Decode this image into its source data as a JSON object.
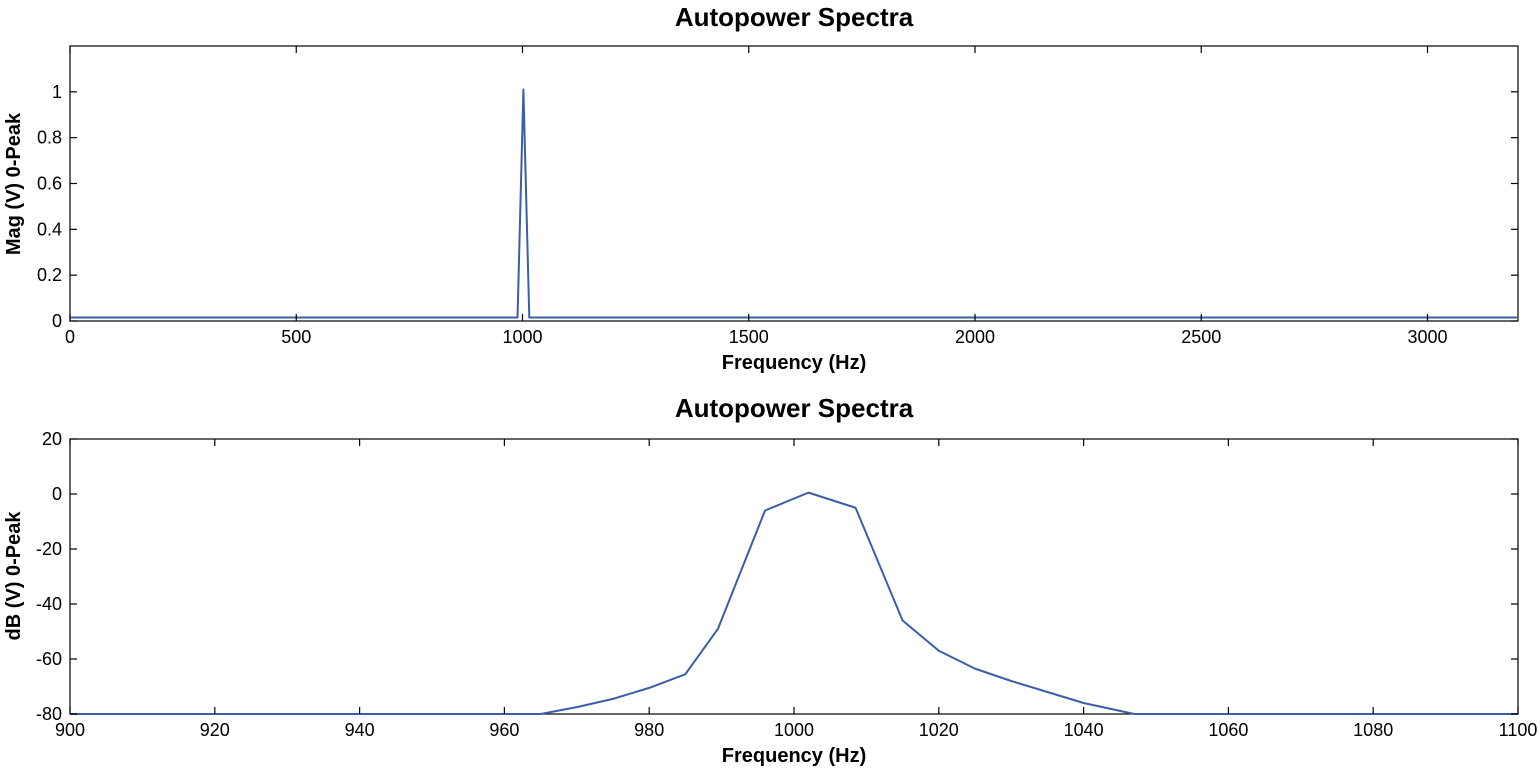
{
  "chart_data": [
    {
      "type": "line",
      "title": "Autopower Spectra",
      "xlabel": "Frequency (Hz)",
      "ylabel": "Mag (V) 0-Peak",
      "xlim": [
        0,
        3200
      ],
      "ylim": [
        0,
        1.2
      ],
      "xticks": [
        0,
        500,
        1000,
        1500,
        2000,
        2500,
        3000
      ],
      "yticks": [
        0,
        0.2,
        0.4,
        0.6,
        0.8,
        1
      ],
      "xtick_labels": [
        "0",
        "500",
        "1000",
        "1500",
        "2000",
        "2500",
        "3000"
      ],
      "ytick_labels": [
        "0",
        "0.2",
        "0.4",
        "0.6",
        "0.8",
        "1"
      ],
      "grid": false,
      "color": "#3b5ea8",
      "series": [
        {
          "x": [
            0,
            985,
            989,
            1002,
            1015,
            1019,
            3200
          ],
          "y": [
            0.015,
            0.015,
            0.015,
            1.01,
            0.015,
            0.015,
            0.015
          ]
        }
      ]
    },
    {
      "type": "line",
      "title": "Autopower Spectra",
      "xlabel": "Frequency (Hz)",
      "ylabel": "dB (V) 0-Peak",
      "xlim": [
        900,
        1100
      ],
      "ylim": [
        -80,
        20
      ],
      "xticks": [
        900,
        920,
        940,
        960,
        980,
        1000,
        1020,
        1040,
        1060,
        1080,
        1100
      ],
      "yticks": [
        -80,
        -60,
        -40,
        -20,
        0,
        20
      ],
      "xtick_labels": [
        "900",
        "920",
        "940",
        "960",
        "980",
        "1000",
        "1020",
        "1040",
        "1060",
        "1080",
        "1100"
      ],
      "ytick_labels": [
        "-80",
        "-60",
        "-40",
        "-20",
        "0",
        "20"
      ],
      "grid": false,
      "color": "#3b5ea8",
      "series": [
        {
          "x": [
            900,
            965,
            970,
            975,
            980,
            985,
            989.5,
            996,
            1002,
            1008.5,
            1015,
            1020,
            1025,
            1030,
            1035,
            1040,
            1047,
            1100
          ],
          "y": [
            -80,
            -80,
            -77.5,
            -74.5,
            -70.5,
            -65.5,
            -49,
            -6,
            0.5,
            -5,
            -46,
            -57,
            -63.5,
            -68,
            -72,
            -76,
            -80,
            -80
          ]
        }
      ]
    }
  ]
}
